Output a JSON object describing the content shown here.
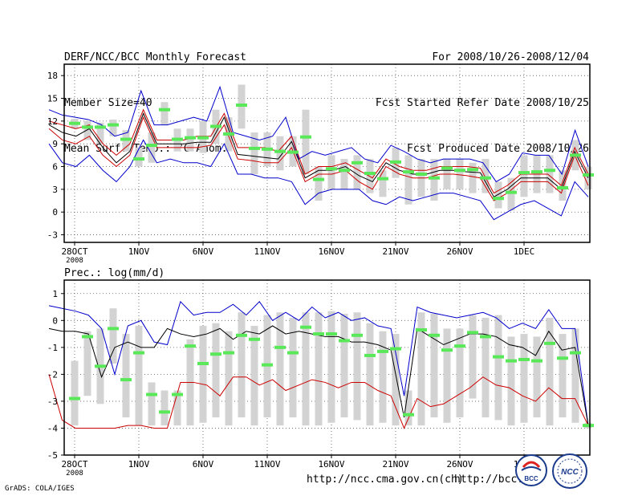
{
  "header": {
    "title": "DERF/NCC/BCC Monthly Forecast",
    "member_size": "Member Size=40",
    "variable": "Mean Surf. Temp.: °C Anom.",
    "period": "For 2008/10/26-2008/12/04",
    "started": "Fcst Started Refer Date 2008/10/25",
    "produced": "Fcst Produced Date 2008/10/26"
  },
  "footer": {
    "url1": "http://ncc.cma.gov.cn(ch)",
    "url2": "http://bcc.",
    "grads": "GrADS: COLA/IGES",
    "logo1": "BCC",
    "logo2": "NCC"
  },
  "colors": {
    "box": "#d3d3d3",
    "ens_mean": "#000000",
    "median": "#58e858",
    "max_line": "#0000cc",
    "min_line": "#cc0000"
  },
  "chart_data": [
    {
      "type": "box",
      "title": "Mean Surf. Temp.: °C Anom.",
      "ylim": [
        -4,
        19.5
      ],
      "yticks": [
        -3,
        0,
        3,
        6,
        9,
        12,
        15,
        18
      ],
      "days": 40,
      "xticks": [
        {
          "day": 0,
          "label": "28OCT",
          "sub": "2008"
        },
        {
          "day": 5,
          "label": "1NOV"
        },
        {
          "day": 10,
          "label": "6NOV"
        },
        {
          "day": 15,
          "label": "11NOV"
        },
        {
          "day": 20,
          "label": "16NOV"
        },
        {
          "day": 25,
          "label": "21NOV"
        },
        {
          "day": 30,
          "label": "26NOV"
        },
        {
          "day": 35,
          "label": "1DEC"
        }
      ],
      "start_day": -2,
      "series": [
        {
          "name": "max",
          "color": "blue",
          "values": [
            13.5,
            12.8,
            12.5,
            12.2,
            11.5,
            10,
            10.5,
            16,
            11.5,
            11.5,
            12,
            12.5,
            12,
            16.5,
            10.5,
            10,
            9.5,
            10,
            12.5,
            7,
            8,
            7.5,
            8,
            8.5,
            7,
            6.5,
            8.8,
            8,
            7,
            6.5,
            7,
            7,
            7,
            6.5,
            4,
            5,
            7.8,
            7.5,
            7.5,
            5,
            10.8,
            6
          ]
        },
        {
          "name": "upper",
          "color": "red",
          "values": [
            12,
            11.5,
            11,
            11.5,
            9,
            7.5,
            9,
            13.5,
            9.5,
            9.5,
            9.5,
            10,
            10,
            13,
            8.5,
            8.5,
            8.5,
            8,
            10,
            5,
            6,
            6,
            6.5,
            5.5,
            4.5,
            7,
            6,
            5.5,
            5.5,
            6,
            6,
            6,
            5.8,
            2.5,
            3.5,
            5,
            5,
            5,
            3.5,
            8.5,
            5
          ]
        },
        {
          "name": "mean",
          "color": "black",
          "values": [
            11.5,
            10.5,
            10,
            11,
            8.5,
            6.5,
            8,
            13,
            9,
            9,
            9,
            9.2,
            9.2,
            12.5,
            7.6,
            7.4,
            7.2,
            7,
            9.3,
            4.5,
            5.5,
            5.5,
            6,
            4.8,
            4,
            6.5,
            5.5,
            5,
            5,
            5.5,
            5.5,
            5.3,
            5.2,
            2,
            3,
            4.5,
            4.5,
            4.5,
            3,
            8,
            4.5
          ]
        },
        {
          "name": "lower",
          "color": "red",
          "values": [
            11,
            9.5,
            9,
            10,
            7.5,
            6,
            7.5,
            12.5,
            8.5,
            8.5,
            8.5,
            8.5,
            8.8,
            11.5,
            7,
            6.8,
            6.5,
            6.5,
            8.5,
            4,
            5,
            5,
            5.5,
            4,
            3,
            6,
            5,
            4.5,
            4.5,
            5,
            5,
            4.8,
            4.5,
            1.5,
            2.5,
            4,
            4,
            4,
            2.5,
            7.5,
            3.5
          ]
        },
        {
          "name": "min",
          "color": "blue",
          "values": [
            9,
            6.5,
            6,
            7.5,
            5.5,
            4,
            6,
            9.5,
            6.5,
            7,
            6.5,
            6.5,
            6,
            9,
            5,
            5,
            4.5,
            4.5,
            4,
            1,
            2.5,
            3,
            3,
            3,
            1.5,
            1,
            2,
            1.5,
            2,
            2.5,
            2.5,
            2,
            1.5,
            -1,
            0,
            1,
            1.5,
            0.5,
            -0.5,
            4,
            2
          ]
        }
      ],
      "boxes": [
        {
          "top": 12.3,
          "bottom": 11,
          "median": 11.7
        },
        {
          "top": 12,
          "bottom": 9.5,
          "median": 11.2
        },
        {
          "top": 11.8,
          "bottom": 9,
          "median": 11.2
        },
        {
          "top": 12.2,
          "bottom": 10,
          "median": 11.5
        },
        {
          "top": 10.8,
          "bottom": 8,
          "median": 9.6
        },
        {
          "top": 8.5,
          "bottom": 6,
          "median": 7
        },
        {
          "top": 10.5,
          "bottom": 6.5,
          "median": 8.8
        },
        {
          "top": 14.5,
          "bottom": 11.5,
          "median": 13.5
        },
        {
          "top": 11,
          "bottom": 8,
          "median": 9.6
        },
        {
          "top": 11,
          "bottom": 8,
          "median": 9.8
        },
        {
          "top": 12,
          "bottom": 7.8,
          "median": 9.8
        },
        {
          "top": 13.5,
          "bottom": 9,
          "median": 11.3
        },
        {
          "top": 12.5,
          "bottom": 8,
          "median": 10.3
        },
        {
          "top": 16.8,
          "bottom": 11,
          "median": 14.1
        },
        {
          "top": 10.5,
          "bottom": 5,
          "median": 8.4
        },
        {
          "top": 10.5,
          "bottom": 6,
          "median": 8.3
        },
        {
          "top": 10,
          "bottom": 5.5,
          "median": 8
        },
        {
          "top": 10,
          "bottom": 6,
          "median": 7.9
        },
        {
          "top": 13.5,
          "bottom": 5,
          "median": 9.9
        },
        {
          "top": 6,
          "bottom": 1.5,
          "median": 4.3
        },
        {
          "top": 7.5,
          "bottom": 3,
          "median": 5.7
        },
        {
          "top": 7,
          "bottom": 3,
          "median": 5.5
        },
        {
          "top": 7.5,
          "bottom": 3,
          "median": 6.5
        },
        {
          "top": 7,
          "bottom": 2.5,
          "median": 5.1
        },
        {
          "top": 5.5,
          "bottom": 2,
          "median": 4.4
        },
        {
          "top": 8.5,
          "bottom": 4.5,
          "median": 6.6
        },
        {
          "top": 7.5,
          "bottom": 1,
          "median": 5.3
        },
        {
          "top": 7,
          "bottom": 2,
          "median": 5
        },
        {
          "top": 7,
          "bottom": 1.5,
          "median": 4.5
        },
        {
          "top": 7,
          "bottom": 3,
          "median": 5.8
        },
        {
          "top": 7,
          "bottom": 3,
          "median": 5.5
        },
        {
          "top": 6.5,
          "bottom": 2.5,
          "median": 5.6
        },
        {
          "top": 7,
          "bottom": 2.5,
          "median": 4.5
        },
        {
          "top": 4,
          "bottom": 0.5,
          "median": 1.8
        },
        {
          "top": 4.5,
          "bottom": 0.2,
          "median": 2.6
        },
        {
          "top": 7.5,
          "bottom": 2,
          "median": 5.2
        },
        {
          "top": 7.5,
          "bottom": 2.5,
          "median": 5.3
        },
        {
          "top": 7.5,
          "bottom": 2.5,
          "median": 5.5
        },
        {
          "top": 5.5,
          "bottom": 1.5,
          "median": 3.2
        },
        {
          "top": 9.5,
          "bottom": 5.5,
          "median": 7.5
        },
        {
          "top": 6,
          "bottom": 3,
          "median": 4.9
        }
      ]
    },
    {
      "type": "box",
      "title": "Prec.: log(mm/d)",
      "ylim": [
        -5,
        1.5
      ],
      "yticks": [
        -5,
        -4,
        -3,
        -2,
        -1,
        0,
        1
      ],
      "days": 40,
      "xticks": [
        {
          "day": 0,
          "label": "28OCT",
          "sub": "2008"
        },
        {
          "day": 5,
          "label": "1NOV"
        },
        {
          "day": 10,
          "label": "6NOV"
        },
        {
          "day": 15,
          "label": "11NOV"
        },
        {
          "day": 20,
          "label": "16NOV"
        },
        {
          "day": 25,
          "label": "21NOV"
        },
        {
          "day": 30,
          "label": "26NOV"
        },
        {
          "day": 35,
          "label": "1DEC"
        }
      ],
      "start_day": -2,
      "series": [
        {
          "name": "max",
          "color": "blue",
          "values": [
            0.55,
            0.45,
            0.35,
            0.2,
            -0.3,
            -2,
            -0.2,
            0,
            -0.8,
            -0.9,
            0.7,
            0.2,
            0.3,
            0.3,
            0.6,
            0.2,
            0.7,
            0,
            0.3,
            0,
            0.5,
            0.1,
            0.3,
            0,
            0.1,
            -0.2,
            -0.3,
            -2.8,
            0.5,
            0.3,
            0.2,
            0.1,
            0.2,
            0.3,
            0.1,
            -0.3,
            -0.1,
            -0.3,
            0.4,
            -0.3,
            -0.3,
            -3.9
          ]
        },
        {
          "name": "mean",
          "color": "black",
          "values": [
            -0.3,
            -0.4,
            -0.4,
            -0.5,
            -2.1,
            -1,
            -0.8,
            -1,
            -1,
            -0.3,
            -0.5,
            -0.6,
            -0.5,
            -0.3,
            -0.7,
            -0.4,
            -0.5,
            -0.2,
            -0.5,
            -0.4,
            -0.5,
            -0.6,
            -0.6,
            -0.8,
            -0.8,
            -0.9,
            -1.1,
            -3.6,
            -0.3,
            -0.6,
            -0.9,
            -0.7,
            -0.5,
            -0.5,
            -0.6,
            -0.9,
            -1,
            -1.3,
            -0.4,
            -1.1,
            -1,
            -3.9
          ]
        },
        {
          "name": "min",
          "color": "red",
          "values": [
            -2,
            -3.7,
            -4,
            -4,
            -4,
            -4,
            -3.9,
            -3.9,
            -4,
            -4,
            -2.3,
            -2.3,
            -2.4,
            -2.8,
            -2.1,
            -2.1,
            -2.4,
            -2.2,
            -2.6,
            -2.4,
            -2.2,
            -2.3,
            -2.5,
            -2.3,
            -2.3,
            -2.6,
            -2.8,
            -4,
            -2.9,
            -3.2,
            -3.1,
            -2.8,
            -2.5,
            -2.1,
            -2.4,
            -2.5,
            -2.8,
            -3,
            -2.5,
            -2.9,
            -2.9,
            -3.9
          ]
        }
      ],
      "boxes": [
        {
          "top": -1.5,
          "bottom": -3.9,
          "median": -2.9
        },
        {
          "top": -0.4,
          "bottom": -2.8,
          "median": -0.6
        },
        {
          "top": -0.3,
          "bottom": -3.1,
          "median": -1.7
        },
        {
          "top": 0.45,
          "bottom": -1.6,
          "median": -0.3
        },
        {
          "top": -0.5,
          "bottom": -3.6,
          "median": -2.2
        },
        {
          "top": -0.2,
          "bottom": -3.9,
          "median": -1.2
        },
        {
          "top": -2.3,
          "bottom": -3.9,
          "median": -2.75
        },
        {
          "top": -2.6,
          "bottom": -3.9,
          "median": -3.4
        },
        {
          "top": -2.6,
          "bottom": -3.9,
          "median": -2.75
        },
        {
          "top": -0.7,
          "bottom": -3.9,
          "median": -0.95
        },
        {
          "top": -0.2,
          "bottom": -3.8,
          "median": -1.6
        },
        {
          "top": -0.1,
          "bottom": -3.6,
          "median": -1.25
        },
        {
          "top": -0.4,
          "bottom": -3.9,
          "median": -1.2
        },
        {
          "top": 0.3,
          "bottom": -3.6,
          "median": -0.55
        },
        {
          "top": -0.2,
          "bottom": -3.9,
          "median": -0.7
        },
        {
          "top": 0.2,
          "bottom": -3.6,
          "median": -1.65
        },
        {
          "top": 0.3,
          "bottom": -3.9,
          "median": -1
        },
        {
          "top": 0.1,
          "bottom": -3.6,
          "median": -1.2
        },
        {
          "top": 0.3,
          "bottom": -3.9,
          "median": -0.25
        },
        {
          "top": 0.3,
          "bottom": -3.9,
          "median": -0.5
        },
        {
          "top": 0.35,
          "bottom": -3.8,
          "median": -0.5
        },
        {
          "top": 0.25,
          "bottom": -3.6,
          "median": -0.75
        },
        {
          "top": 0.3,
          "bottom": -3.7,
          "median": -0.55
        },
        {
          "top": -0.1,
          "bottom": -3.9,
          "median": -1.3
        },
        {
          "top": -0.4,
          "bottom": -3.8,
          "median": -1.15
        },
        {
          "top": -0.5,
          "bottom": -3.9,
          "median": -1.05
        },
        {
          "top": -2.6,
          "bottom": -3.9,
          "median": -3.5
        },
        {
          "top": 0.3,
          "bottom": -3.9,
          "median": -0.35
        },
        {
          "top": 0.25,
          "bottom": -3.6,
          "median": -0.55
        },
        {
          "top": -0.3,
          "bottom": -3.8,
          "median": -1.1
        },
        {
          "top": -0.3,
          "bottom": -3.6,
          "median": -0.95
        },
        {
          "top": 0.2,
          "bottom": -2.9,
          "median": -0.45
        },
        {
          "top": 0.1,
          "bottom": -3.6,
          "median": -0.6
        },
        {
          "top": 0.2,
          "bottom": -3.7,
          "median": -1.35
        },
        {
          "top": -0.6,
          "bottom": -3.9,
          "median": -1.5
        },
        {
          "top": -0.5,
          "bottom": -3.8,
          "median": -1.45
        },
        {
          "top": -0.6,
          "bottom": -3.6,
          "median": -1.5
        },
        {
          "top": 0.1,
          "bottom": -3.9,
          "median": -0.85
        },
        {
          "top": -0.5,
          "bottom": -3.6,
          "median": -1.4
        },
        {
          "top": -0.3,
          "bottom": -3.8,
          "median": -1.2
        },
        {
          "top": -3.8,
          "bottom": -4,
          "median": -3.9
        }
      ]
    }
  ]
}
